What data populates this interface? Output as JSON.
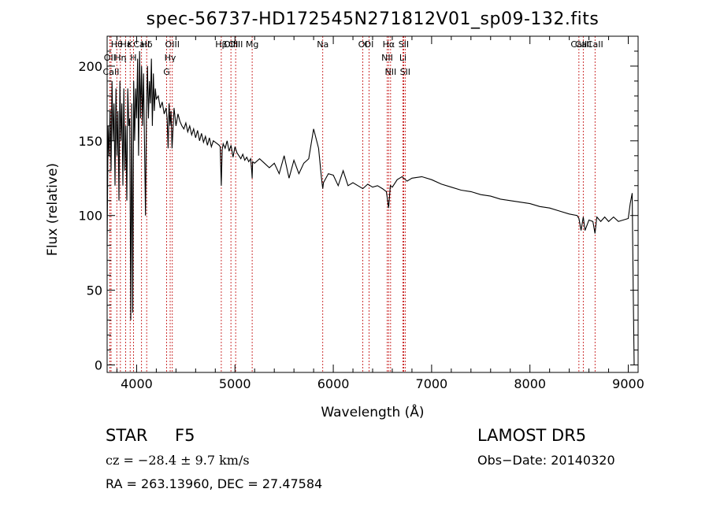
{
  "colors": {
    "axis": "#000000",
    "spectrum": "#000000",
    "line_marker": "#c00000"
  },
  "chart_data": {
    "type": "line",
    "title": "spec-56737-HD172545N271812V01_sp09-132.fits",
    "xlabel": "Wavelength (Å)",
    "ylabel": "Flux (relative)",
    "xlim": [
      3700,
      9100
    ],
    "ylim": [
      -5,
      220
    ],
    "grid": false,
    "x_ticks": [
      4000,
      5000,
      6000,
      7000,
      8000,
      9000
    ],
    "y_ticks": [
      0,
      50,
      100,
      150,
      200
    ],
    "series": [
      {
        "x": [
          3700,
          3710,
          3720,
          3730,
          3740,
          3750,
          3760,
          3770,
          3780,
          3790,
          3800,
          3810,
          3820,
          3830,
          3840,
          3850,
          3860,
          3870,
          3880,
          3890,
          3900,
          3910,
          3920,
          3930,
          3940,
          3950,
          3960,
          3970,
          3980,
          3990,
          4000,
          4010,
          4020,
          4030,
          4040,
          4050,
          4060,
          4070,
          4080,
          4090,
          4100,
          4110,
          4120,
          4130,
          4140,
          4150,
          4160,
          4170,
          4180,
          4190,
          4200,
          4220,
          4240,
          4260,
          4280,
          4300,
          4310,
          4320,
          4330,
          4340,
          4350,
          4360,
          4380,
          4400,
          4420,
          4440,
          4460,
          4480,
          4500,
          4520,
          4540,
          4560,
          4580,
          4600,
          4620,
          4640,
          4660,
          4680,
          4700,
          4720,
          4740,
          4760,
          4780,
          4800,
          4820,
          4840,
          4850,
          4861,
          4870,
          4880,
          4900,
          4920,
          4940,
          4960,
          4980,
          5000,
          5020,
          5040,
          5060,
          5080,
          5100,
          5120,
          5140,
          5160,
          5170,
          5175,
          5180,
          5200,
          5250,
          5300,
          5350,
          5400,
          5450,
          5500,
          5550,
          5600,
          5650,
          5700,
          5750,
          5800,
          5850,
          5880,
          5893,
          5900,
          5950,
          6000,
          6050,
          6100,
          6150,
          6200,
          6250,
          6300,
          6350,
          6400,
          6450,
          6500,
          6540,
          6563,
          6580,
          6600,
          6650,
          6700,
          6750,
          6800,
          6900,
          7000,
          7100,
          7200,
          7300,
          7400,
          7500,
          7600,
          7700,
          7800,
          7900,
          8000,
          8100,
          8200,
          8300,
          8400,
          8480,
          8498,
          8520,
          8542,
          8560,
          8600,
          8640,
          8662,
          8680,
          8720,
          8760,
          8800,
          8850,
          8900,
          8950,
          9000,
          9020,
          9040,
          9050,
          9060
        ],
        "values": [
          80,
          160,
          140,
          170,
          130,
          190,
          150,
          175,
          120,
          185,
          140,
          170,
          110,
          190,
          150,
          175,
          120,
          185,
          130,
          160,
          110,
          185,
          160,
          165,
          30,
          175,
          35,
          190,
          150,
          185,
          165,
          205,
          140,
          210,
          165,
          200,
          160,
          195,
          150,
          100,
          170,
          200,
          165,
          190,
          175,
          205,
          160,
          195,
          170,
          185,
          178,
          180,
          172,
          176,
          168,
          172,
          165,
          145,
          175,
          160,
          170,
          145,
          172,
          160,
          168,
          163,
          160,
          158,
          162,
          156,
          160,
          154,
          158,
          152,
          157,
          150,
          155,
          149,
          153,
          147,
          152,
          146,
          150,
          149,
          148,
          147,
          146,
          120,
          144,
          148,
          145,
          150,
          143,
          147,
          139,
          146,
          142,
          140,
          138,
          141,
          137,
          139,
          136,
          138,
          130,
          125,
          136,
          135,
          138,
          135,
          132,
          135,
          128,
          140,
          125,
          137,
          128,
          135,
          138,
          158,
          145,
          125,
          118,
          122,
          128,
          127,
          120,
          130,
          120,
          122,
          120,
          118,
          121,
          119,
          120,
          118,
          116,
          105,
          120,
          119,
          124,
          126,
          123,
          125,
          126,
          124,
          121,
          119,
          117,
          116,
          114,
          113,
          111,
          110,
          109,
          108,
          106,
          105,
          103,
          101,
          100,
          98,
          90,
          99,
          90,
          97,
          96,
          88,
          99,
          96,
          99,
          96,
          99,
          96,
          97,
          98,
          108,
          115,
          50,
          0
        ]
      }
    ],
    "spectral_lines": [
      {
        "label": "Hθ",
        "wavelength": 3798
      },
      {
        "label": "OII",
        "wavelength": 3727
      },
      {
        "label": "CaII",
        "wavelength": 3740
      },
      {
        "label": "Hε",
        "wavelength": 3889
      },
      {
        "label": "Hη",
        "wavelength": 3835
      },
      {
        "label": "K",
        "wavelength": 3934
      },
      {
        "label": "H",
        "wavelength": 3968
      },
      {
        "label": "Hδ",
        "wavelength": 4102
      },
      {
        "label": "CaII",
        "wavelength": 4050
      },
      {
        "label": "OIII",
        "wavelength": 4363
      },
      {
        "label": "Hγ",
        "wavelength": 4341
      },
      {
        "label": "G",
        "wavelength": 4305
      },
      {
        "label": "OIII",
        "wavelength": 5007
      },
      {
        "label": "OIII",
        "wavelength": 4959
      },
      {
        "label": "Hβ",
        "wavelength": 4861
      },
      {
        "label": "Mg",
        "wavelength": 5175
      },
      {
        "label": "Na",
        "wavelength": 5893
      },
      {
        "label": "OI",
        "wavelength": 6300
      },
      {
        "label": "OI",
        "wavelength": 6363
      },
      {
        "label": "Hα",
        "wavelength": 6563
      },
      {
        "label": "NII",
        "wavelength": 6548
      },
      {
        "label": "NII",
        "wavelength": 6583
      },
      {
        "label": "SII",
        "wavelength": 6716
      },
      {
        "label": "Li",
        "wavelength": 6708
      },
      {
        "label": "SII",
        "wavelength": 6731
      },
      {
        "label": "CaII",
        "wavelength": 8542
      },
      {
        "label": "CaII",
        "wavelength": 8498
      },
      {
        "label": "CaII",
        "wavelength": 8662
      }
    ]
  },
  "footer": {
    "class": "STAR",
    "subclass": "F5",
    "survey": "LAMOST DR5",
    "cz": "cz = −28.4 ± 9.7 km/s",
    "obs_date": "Obs−Date: 20140320",
    "coords": "RA = 263.13960, DEC =  27.47584"
  }
}
